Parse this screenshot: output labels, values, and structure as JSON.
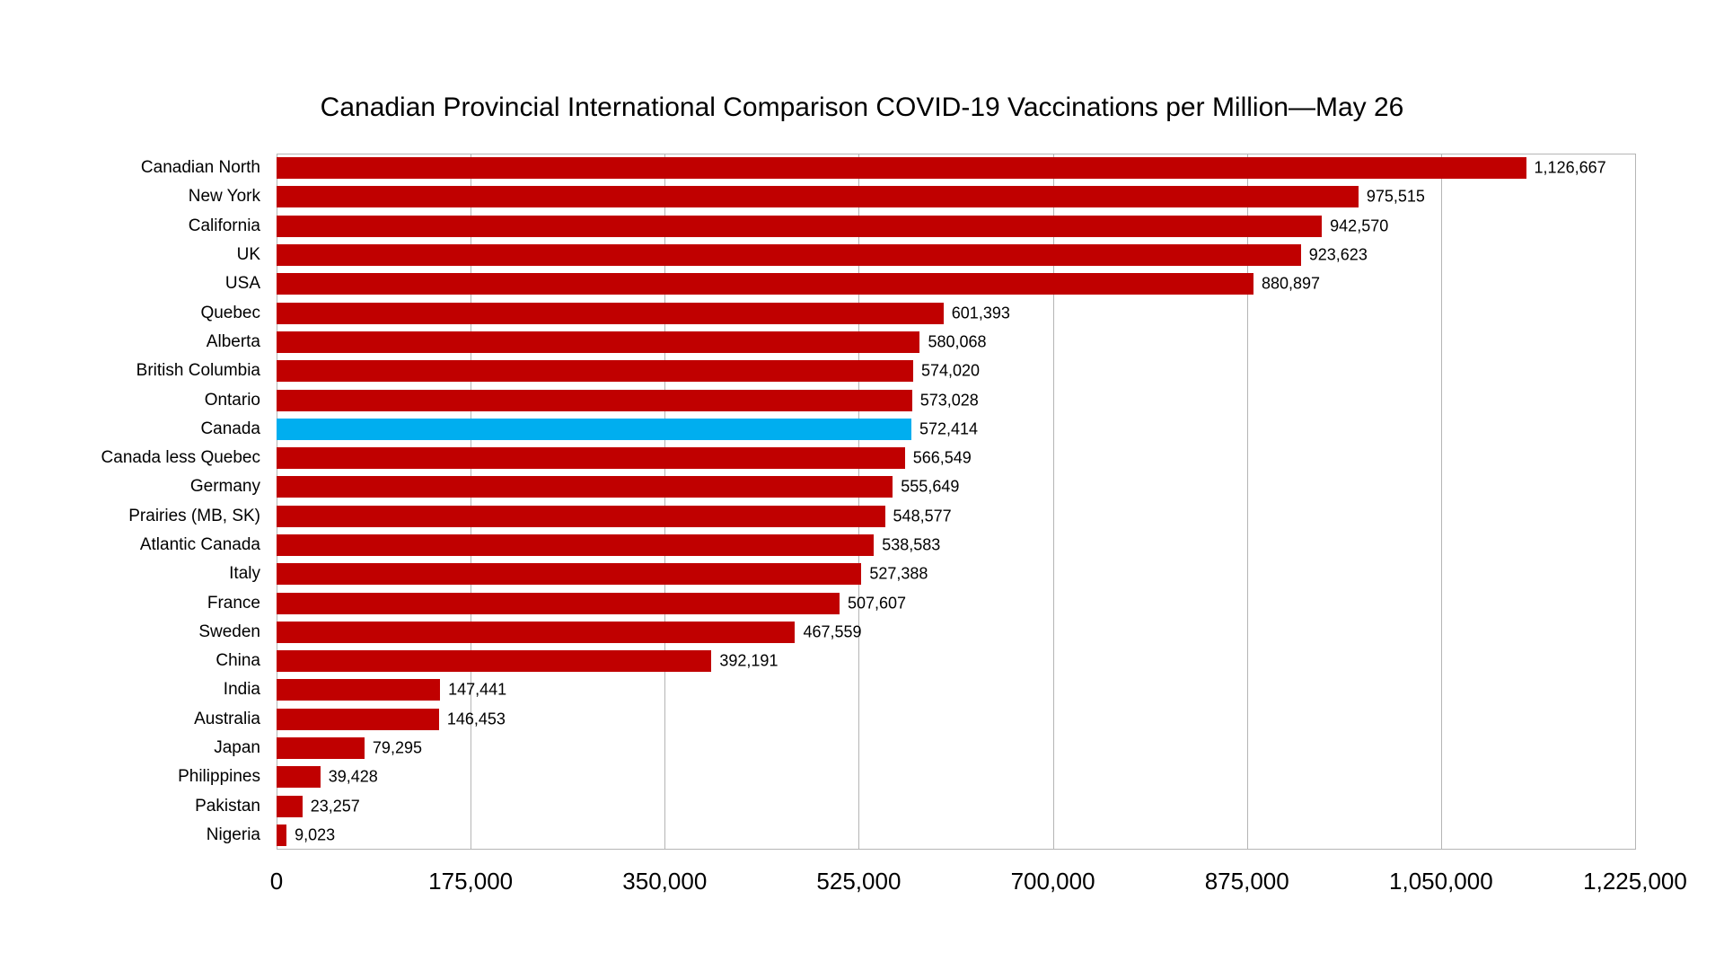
{
  "title": "Canadian Provincial International Comparison COVID-19 Vaccinations per Million—May 26",
  "chart_data": {
    "type": "bar",
    "orientation": "horizontal",
    "title": "Canadian Provincial International Comparison COVID-19 Vaccinations per Million—May 26",
    "categories": [
      "Canadian North",
      "New York",
      "California",
      "UK",
      "USA",
      "Quebec",
      "Alberta",
      "British Columbia",
      "Ontario",
      "Canada",
      "Canada less Quebec",
      "Germany",
      "Prairies (MB, SK)",
      "Atlantic Canada",
      "Italy",
      "France",
      "Sweden",
      "China",
      "India",
      "Australia",
      "Japan",
      "Philippines",
      "Pakistan",
      "Nigeria"
    ],
    "values": [
      1126667,
      975515,
      942570,
      923623,
      880897,
      601393,
      580068,
      574020,
      573028,
      572414,
      566549,
      555649,
      548577,
      538583,
      527388,
      507607,
      467559,
      392191,
      147441,
      146453,
      79295,
      39428,
      23257,
      9023
    ],
    "value_labels": [
      "1,126,667",
      "975,515",
      "942,570",
      "923,623",
      "880,897",
      "601,393",
      "580,068",
      "574,020",
      "573,028",
      "572,414",
      "566,549",
      "555,649",
      "548,577",
      "538,583",
      "527,388",
      "507,607",
      "467,559",
      "392,191",
      "147,441",
      "146,453",
      "79,295",
      "39,428",
      "23,257",
      "9,023"
    ],
    "highlight": {
      "category": "Canada",
      "index": 9
    },
    "colors": {
      "bar": "#c00000",
      "highlight": "#00aeef",
      "gridline": "#b5b5b5",
      "text": "#000000",
      "background": "#ffffff"
    },
    "xlabel": "",
    "ylabel": "",
    "xlim": [
      0,
      1225000
    ],
    "xticks": [
      0,
      175000,
      350000,
      525000,
      700000,
      875000,
      1050000,
      1225000
    ],
    "xtick_labels": [
      "0",
      "175,000",
      "350,000",
      "525,000",
      "700,000",
      "875,000",
      "1,050,000",
      "1,225,000"
    ],
    "grid": true,
    "legend": false
  }
}
